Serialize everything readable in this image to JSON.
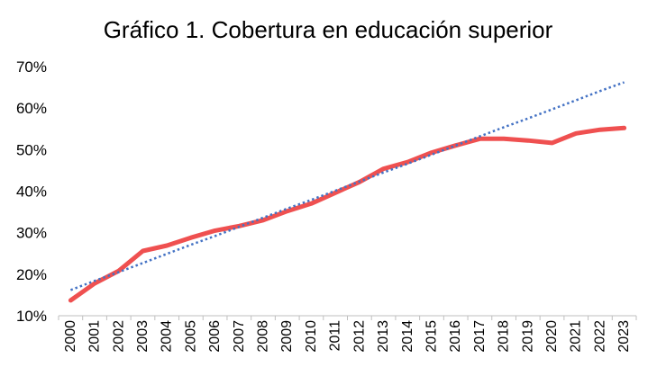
{
  "chart_data": {
    "type": "line",
    "title": "Gráfico 1. Cobertura en educación superior",
    "xlabel": "",
    "ylabel": "",
    "categories": [
      "2000",
      "2001",
      "2002",
      "2003",
      "2004",
      "2005",
      "2006",
      "2007",
      "2008",
      "2009",
      "2010",
      "2011",
      "2012",
      "2013",
      "2014",
      "2015",
      "2016",
      "2017",
      "2018",
      "2019",
      "2020",
      "2021",
      "2022",
      "2023"
    ],
    "ylim": [
      10,
      70
    ],
    "yticks": [
      10,
      20,
      30,
      40,
      50,
      60,
      70
    ],
    "ytick_labels": [
      "10%",
      "20%",
      "30%",
      "40%",
      "50%",
      "60%",
      "70%"
    ],
    "grid": false,
    "legend": "none",
    "series": [
      {
        "values": [
          13.7,
          17.8,
          20.8,
          25.6,
          26.9,
          28.8,
          30.5,
          31.6,
          33.0,
          35.2,
          37.0,
          39.6,
          42.2,
          45.4,
          47.0,
          49.3,
          51.0,
          52.6,
          52.6,
          52.2,
          51.6,
          53.9,
          54.8,
          55.2
        ],
        "color": "#EF5050",
        "style": "solid"
      },
      {
        "values": [
          16.2,
          18.4,
          20.5,
          22.7,
          24.9,
          27.1,
          29.2,
          31.4,
          33.6,
          35.8,
          37.9,
          40.1,
          42.3,
          44.5,
          46.6,
          48.8,
          51.0,
          53.2,
          55.4,
          57.5,
          59.7,
          61.9,
          64.1,
          66.2
        ],
        "color": "#4472C4",
        "style": "dotted",
        "role": "trendline"
      }
    ]
  }
}
